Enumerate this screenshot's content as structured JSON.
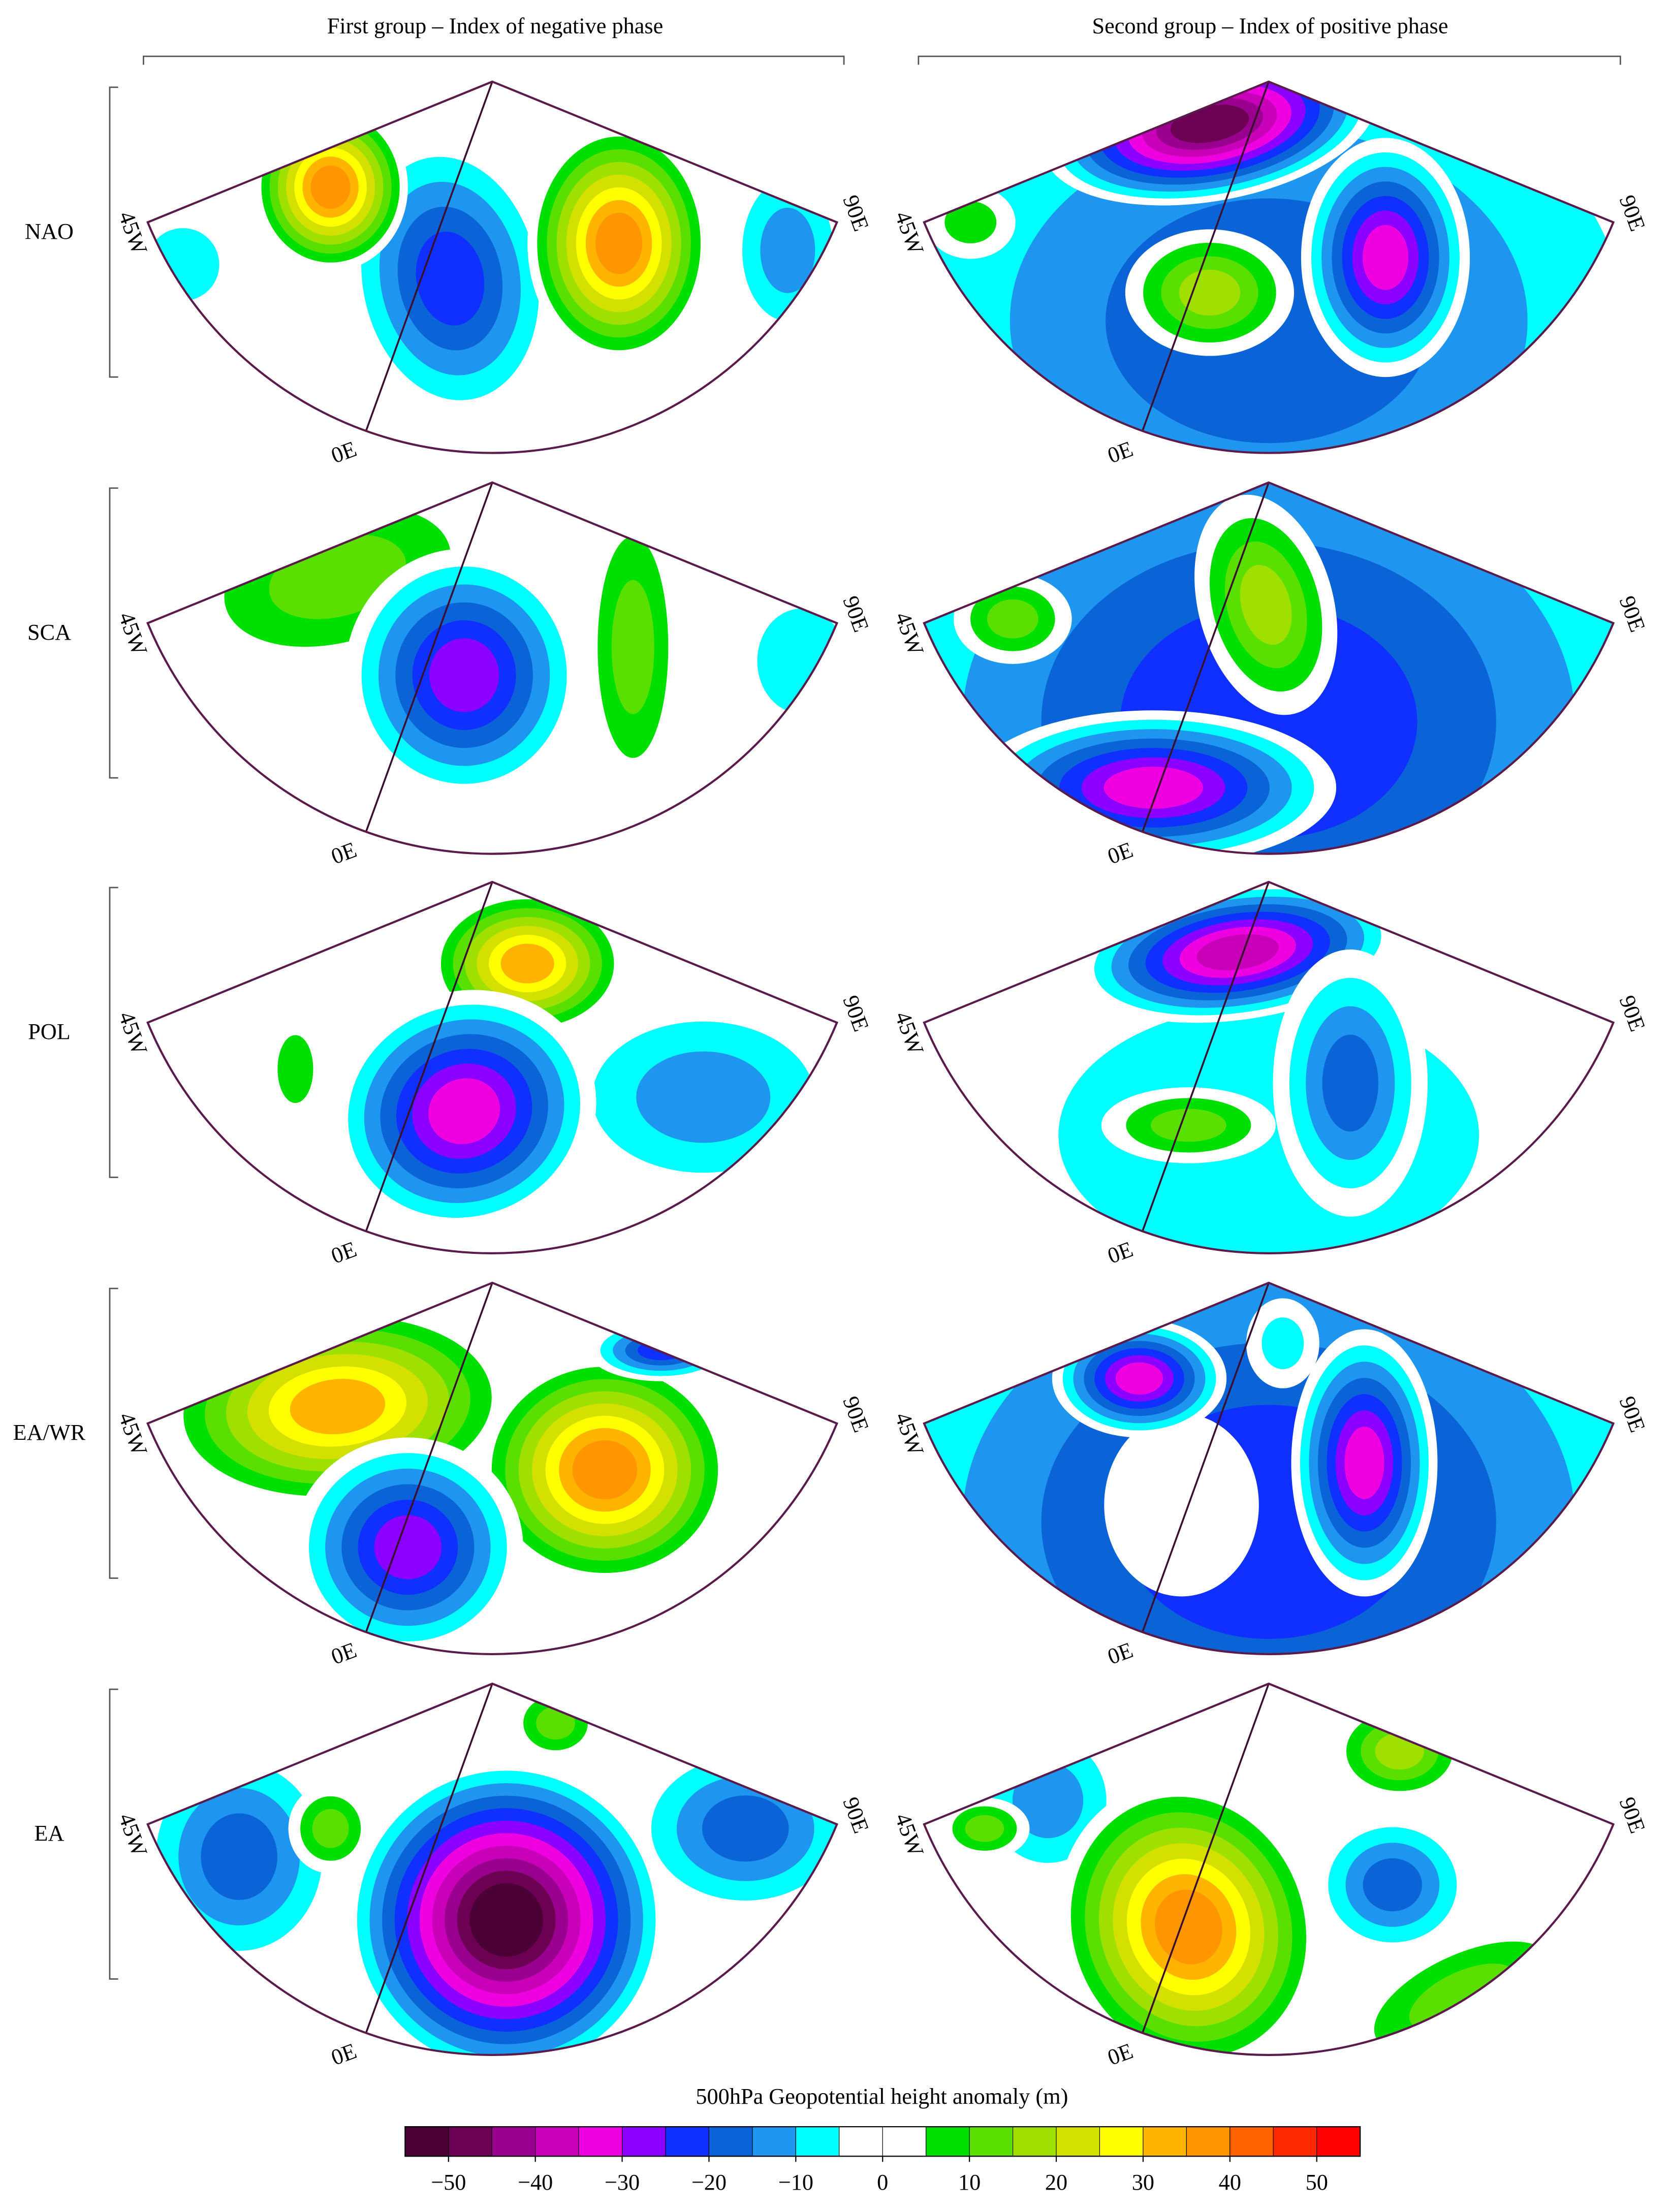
{
  "columns": [
    "First group – Index of negative phase",
    "Second group – Index of positive phase"
  ],
  "longitude_labels": {
    "west": "45W",
    "east": "90E",
    "center": "0E"
  },
  "rows": [
    {
      "label": "NAO",
      "panels": [
        {
          "anomalies": [
            -10,
            -15,
            -25,
            40,
            40
          ]
        },
        {
          "anomalies": [
            -20,
            -50,
            -35,
            20,
            10
          ]
        }
      ]
    },
    {
      "label": "SCA",
      "panels": [
        {
          "anomalies": [
            -10,
            15,
            -30,
            15
          ]
        },
        {
          "anomalies": [
            -25,
            -35,
            20,
            15
          ]
        }
      ]
    },
    {
      "label": "POL",
      "panels": [
        {
          "anomalies": [
            -15,
            35,
            -35,
            10
          ]
        },
        {
          "anomalies": [
            -10,
            -40,
            -20,
            15
          ]
        }
      ]
    },
    {
      "label": "EA/WR",
      "panels": [
        {
          "anomalies": [
            35,
            40,
            -30,
            -25
          ]
        },
        {
          "anomalies": [
            -25,
            5,
            -35,
            -35,
            -10
          ]
        }
      ]
    },
    {
      "label": "EA",
      "panels": [
        {
          "anomalies": [
            -20,
            -20,
            -55,
            15,
            15
          ]
        },
        {
          "anomalies": [
            -15,
            40,
            -20,
            15,
            20,
            15
          ]
        }
      ]
    }
  ],
  "colorbar": {
    "title": "500hPa Geopotential height anomaly (m)",
    "bins": [
      -55,
      -50,
      -45,
      -40,
      -35,
      -30,
      -25,
      -20,
      -15,
      -10,
      -5,
      0,
      5,
      10,
      15,
      20,
      25,
      30,
      35,
      40,
      45,
      50,
      55
    ],
    "colors": [
      "#4b0036",
      "#6c0052",
      "#9a0090",
      "#c800b8",
      "#ee00e0",
      "#8c00ff",
      "#1030ff",
      "#0a64d8",
      "#1e96f0",
      "#00ffff",
      "#ffffff",
      "#ffffff",
      "#00e000",
      "#5ae000",
      "#a0e000",
      "#d4e000",
      "#ffff00",
      "#ffb400",
      "#ff9600",
      "#ff6400",
      "#ff2800",
      "#ff0000"
    ],
    "ticks": [
      {
        "value": -50,
        "label": "−50"
      },
      {
        "value": -40,
        "label": "−40"
      },
      {
        "value": -30,
        "label": "−30"
      },
      {
        "value": -20,
        "label": "−20"
      },
      {
        "value": -10,
        "label": "−10"
      },
      0,
      10,
      20,
      30,
      40,
      50
    ]
  }
}
